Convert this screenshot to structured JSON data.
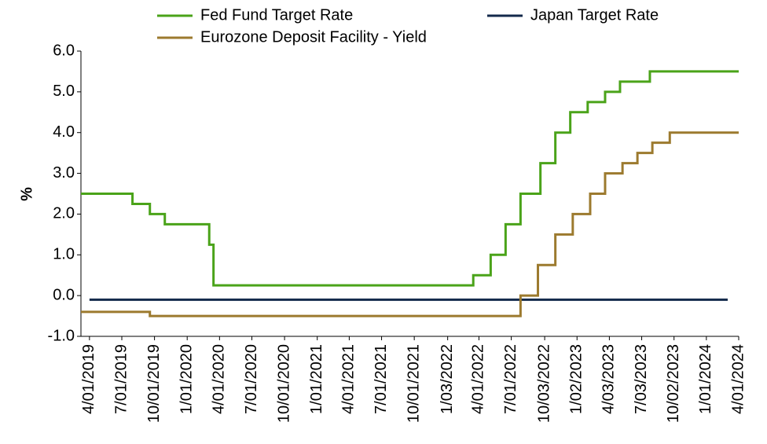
{
  "chart_data": {
    "type": "line",
    "step": true,
    "y_label": "%",
    "xlim": [
      "2019-03-08",
      "2024-04-01"
    ],
    "ylim": [
      -1,
      6
    ],
    "yticks": [
      {
        "value": -1,
        "label": "-1.0"
      },
      {
        "value": 0,
        "label": "0.0"
      },
      {
        "value": 1,
        "label": "1.0"
      },
      {
        "value": 2,
        "label": "2.0"
      },
      {
        "value": 3,
        "label": "3.0"
      },
      {
        "value": 4,
        "label": "4.0"
      },
      {
        "value": 5,
        "label": "5.0"
      },
      {
        "value": 6,
        "label": "6.0"
      }
    ],
    "xticks": [
      {
        "value": "2019-04-01",
        "label": "4/01/2019"
      },
      {
        "value": "2019-07-01",
        "label": "7/01/2019"
      },
      {
        "value": "2019-10-01",
        "label": "10/01/2019"
      },
      {
        "value": "2020-01-01",
        "label": "1/01/2020"
      },
      {
        "value": "2020-04-01",
        "label": "4/01/2020"
      },
      {
        "value": "2020-07-01",
        "label": "7/01/2020"
      },
      {
        "value": "2020-10-01",
        "label": "10/01/2020"
      },
      {
        "value": "2021-01-01",
        "label": "1/01/2021"
      },
      {
        "value": "2021-04-01",
        "label": "4/01/2021"
      },
      {
        "value": "2021-07-01",
        "label": "7/01/2021"
      },
      {
        "value": "2021-10-01",
        "label": "10/01/2021"
      },
      {
        "value": "2022-01-03",
        "label": "1/03/2022"
      },
      {
        "value": "2022-04-01",
        "label": "4/01/2022"
      },
      {
        "value": "2022-07-01",
        "label": "7/01/2022"
      },
      {
        "value": "2022-10-03",
        "label": "10/03/2022"
      },
      {
        "value": "2023-01-02",
        "label": "1/02/2023"
      },
      {
        "value": "2023-04-03",
        "label": "4/03/2023"
      },
      {
        "value": "2023-07-03",
        "label": "7/03/2023"
      },
      {
        "value": "2023-10-02",
        "label": "10/02/2023"
      },
      {
        "value": "2024-01-01",
        "label": "1/01/2024"
      },
      {
        "value": "2024-04-01",
        "label": "4/01/2024"
      }
    ],
    "series": [
      {
        "name": "Fed Fund Target Rate",
        "color": "#4aa319",
        "x": [
          "2019-03-08",
          "2019-07-31",
          "2019-07-31",
          "2019-09-18",
          "2019-09-18",
          "2019-10-30",
          "2019-10-30",
          "2020-03-03",
          "2020-03-03",
          "2020-03-15",
          "2020-03-15",
          "2022-03-16",
          "2022-03-16",
          "2022-05-04",
          "2022-05-04",
          "2022-06-15",
          "2022-06-15",
          "2022-07-27",
          "2022-07-27",
          "2022-09-21",
          "2022-09-21",
          "2022-11-02",
          "2022-11-02",
          "2022-12-14",
          "2022-12-14",
          "2023-02-01",
          "2023-02-01",
          "2023-03-22",
          "2023-03-22",
          "2023-05-03",
          "2023-05-03",
          "2023-07-26",
          "2023-07-26",
          "2024-04-01"
        ],
        "values": [
          2.5,
          2.5,
          2.25,
          2.25,
          2.0,
          2.0,
          1.75,
          1.75,
          1.25,
          1.25,
          0.25,
          0.25,
          0.5,
          0.5,
          1.0,
          1.0,
          1.75,
          1.75,
          2.5,
          2.5,
          3.25,
          3.25,
          4.0,
          4.0,
          4.5,
          4.5,
          4.75,
          4.75,
          5.0,
          5.0,
          5.25,
          5.25,
          5.5,
          5.5
        ]
      },
      {
        "name": "Japan Target Rate",
        "color": "#13294b",
        "x": [
          "2019-04-01",
          "2024-03-01"
        ],
        "values": [
          -0.1,
          -0.1
        ]
      },
      {
        "name": "Eurozone Deposit Facility - Yield",
        "color": "#9c7a2e",
        "x": [
          "2019-03-08",
          "2019-09-18",
          "2019-09-18",
          "2022-07-27",
          "2022-07-27",
          "2022-09-14",
          "2022-09-14",
          "2022-11-02",
          "2022-11-02",
          "2022-12-21",
          "2022-12-21",
          "2023-02-08",
          "2023-02-08",
          "2023-03-22",
          "2023-03-22",
          "2023-05-10",
          "2023-05-10",
          "2023-06-21",
          "2023-06-21",
          "2023-08-02",
          "2023-08-02",
          "2023-09-20",
          "2023-09-20",
          "2024-04-01"
        ],
        "values": [
          -0.4,
          -0.4,
          -0.5,
          -0.5,
          0.0,
          0.0,
          0.75,
          0.75,
          1.5,
          1.5,
          2.0,
          2.0,
          2.5,
          2.5,
          3.0,
          3.0,
          3.25,
          3.25,
          3.5,
          3.5,
          3.75,
          3.75,
          4.0,
          4.0
        ]
      }
    ]
  }
}
